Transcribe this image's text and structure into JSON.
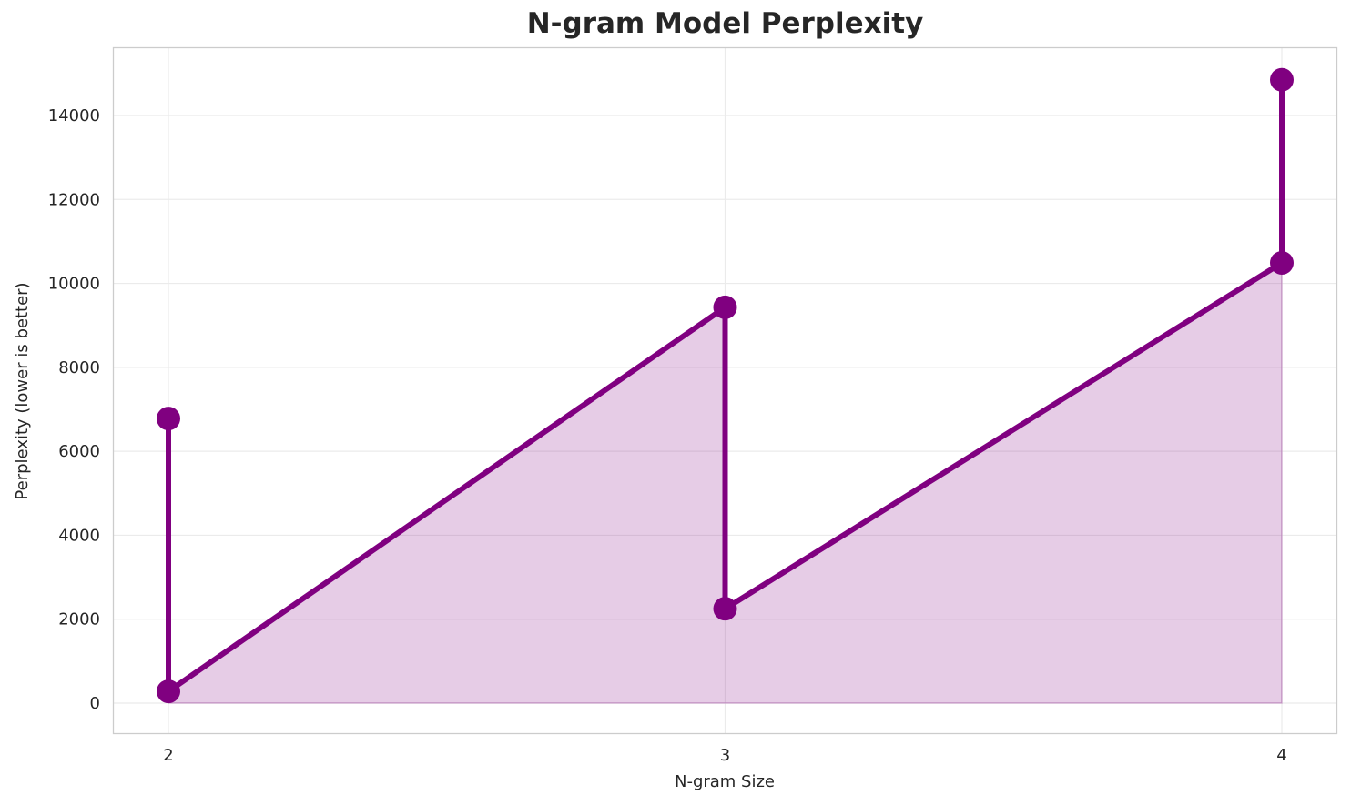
{
  "chart_data": {
    "type": "line",
    "title": "N-gram Model Perplexity",
    "xlabel": "N-gram Size",
    "ylabel": "Perplexity (lower is better)",
    "x_ticks": [
      "2",
      "3",
      "4"
    ],
    "y_ticks": [
      "0",
      "2000",
      "4000",
      "6000",
      "8000",
      "10000",
      "12000",
      "14000"
    ],
    "ylim": [
      -700,
      15500
    ],
    "xlim": [
      1.9,
      4.1
    ],
    "grid": true,
    "legend": null,
    "series": [
      {
        "name": "Perplexity",
        "color": "#800080",
        "fill": true,
        "fill_color": "#800080",
        "fill_alpha": 0.2,
        "points": [
          {
            "x": 2,
            "y": 6780
          },
          {
            "x": 2,
            "y": 280
          },
          {
            "x": 3,
            "y": 9430
          },
          {
            "x": 3,
            "y": 2250
          },
          {
            "x": 4,
            "y": 10490
          },
          {
            "x": 4,
            "y": 14850
          }
        ]
      }
    ]
  }
}
